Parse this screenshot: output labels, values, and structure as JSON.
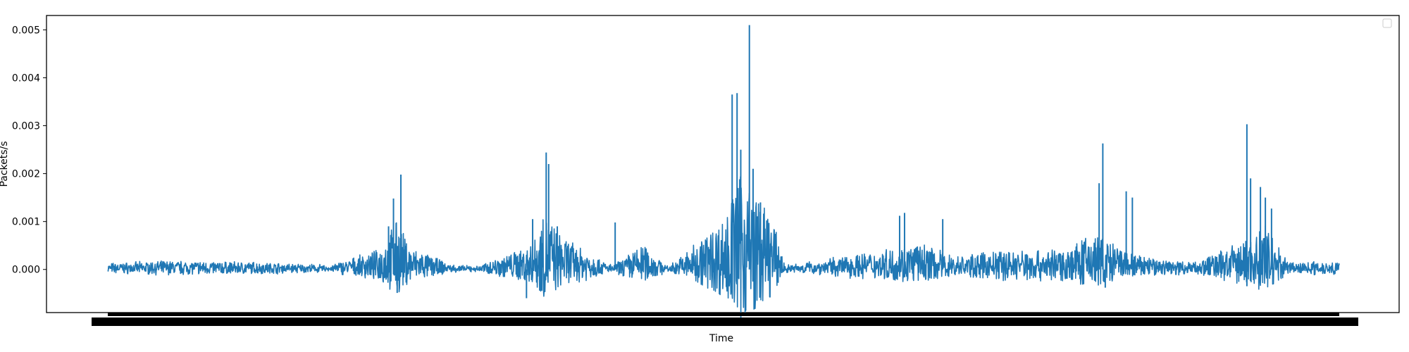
{
  "chart_data": {
    "type": "line",
    "title": "",
    "xlabel": "Time",
    "ylabel": "Packets/s",
    "ylim": [
      -0.0009,
      0.0053
    ],
    "yticks": [
      0.0,
      0.001,
      0.002,
      0.003,
      0.004,
      0.005
    ],
    "ytick_labels": [
      "0.000",
      "0.001",
      "0.002",
      "0.003",
      "0.004",
      "0.005"
    ],
    "x_tick_labels_note": "dense overlapping tick labels rendered as a black band",
    "grid": false,
    "legend": {
      "placement": "top-right",
      "entries": []
    },
    "series": [
      {
        "color": "#1f77b4",
        "baseline": 0.0,
        "noise": 8e-05,
        "x": [
          0,
          0.05,
          0.12,
          0.18,
          0.22,
          0.235,
          0.245,
          0.28,
          0.3,
          0.345,
          0.355,
          0.37,
          0.41,
          0.435,
          0.455,
          0.5,
          0.515,
          0.525,
          0.54,
          0.55,
          0.63,
          0.66,
          0.69,
          0.73,
          0.78,
          0.8,
          0.825,
          0.84,
          0.88,
          0.93,
          0.94,
          0.96,
          1.0
        ],
        "y": [
          8e-05,
          0.00012,
          0.0001,
          5e-05,
          0.0003,
          0.0008,
          0.00035,
          5e-05,
          3e-05,
          0.0004,
          0.0009,
          0.0005,
          4e-05,
          0.0004,
          2e-05,
          0.0008,
          0.0016,
          0.0012,
          0.0008,
          5e-05,
          0.0003,
          0.0004,
          0.0002,
          0.0003,
          0.0003,
          0.0006,
          0.0003,
          0.0002,
          0.0001,
          0.0005,
          0.0007,
          0.0001,
          0.00012
        ],
        "spikes": [
          {
            "x": 0.232,
            "y": 0.00148
          },
          {
            "x": 0.238,
            "y": 0.00198
          },
          {
            "x": 0.228,
            "y": 0.0009
          },
          {
            "x": 0.345,
            "y": 0.00105
          },
          {
            "x": 0.356,
            "y": 0.00244
          },
          {
            "x": 0.358,
            "y": 0.0022
          },
          {
            "x": 0.365,
            "y": 0.0009
          },
          {
            "x": 0.412,
            "y": 0.00098
          },
          {
            "x": 0.507,
            "y": 0.00365
          },
          {
            "x": 0.511,
            "y": 0.00368
          },
          {
            "x": 0.514,
            "y": 0.0025
          },
          {
            "x": 0.521,
            "y": 0.0051
          },
          {
            "x": 0.524,
            "y": 0.0021
          },
          {
            "x": 0.53,
            "y": 0.0014
          },
          {
            "x": 0.643,
            "y": 0.00112
          },
          {
            "x": 0.647,
            "y": 0.00118
          },
          {
            "x": 0.678,
            "y": 0.00105
          },
          {
            "x": 0.805,
            "y": 0.0018
          },
          {
            "x": 0.808,
            "y": 0.00263
          },
          {
            "x": 0.827,
            "y": 0.00163
          },
          {
            "x": 0.832,
            "y": 0.0015
          },
          {
            "x": 0.925,
            "y": 0.00303
          },
          {
            "x": 0.928,
            "y": 0.0019
          },
          {
            "x": 0.936,
            "y": 0.00172
          },
          {
            "x": 0.945,
            "y": 0.00127
          },
          {
            "x": 0.94,
            "y": 0.0015
          }
        ],
        "dips": [
          {
            "x": 0.235,
            "y": -0.00049
          },
          {
            "x": 0.34,
            "y": -0.0006
          },
          {
            "x": 0.352,
            "y": -0.00035
          },
          {
            "x": 0.53,
            "y": -0.00025
          },
          {
            "x": 0.81,
            "y": -0.00038
          },
          {
            "x": 0.925,
            "y": -0.00035
          }
        ]
      }
    ]
  }
}
